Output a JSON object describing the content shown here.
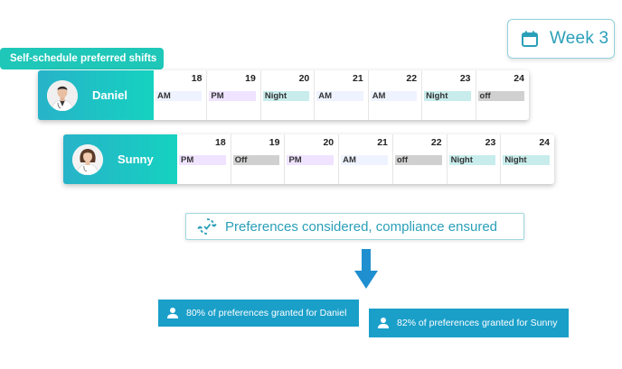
{
  "week": {
    "label": "Week 3",
    "icon": "calendar-icon"
  },
  "tag": {
    "label": "Self-schedule preferred shifts"
  },
  "colors": {
    "teal": "#1ec7b8",
    "blue": "#1a9fc9",
    "accent_text": "#2a9fb8"
  },
  "schedules": [
    {
      "name": "Daniel",
      "days": [
        {
          "num": "18",
          "shift": "AM",
          "type": "am"
        },
        {
          "num": "19",
          "shift": "PM",
          "type": "pm"
        },
        {
          "num": "20",
          "shift": "Night",
          "type": "night"
        },
        {
          "num": "21",
          "shift": "AM",
          "type": "am"
        },
        {
          "num": "22",
          "shift": "AM",
          "type": "am"
        },
        {
          "num": "23",
          "shift": "Night",
          "type": "night"
        },
        {
          "num": "24",
          "shift": "off",
          "type": "off"
        }
      ]
    },
    {
      "name": "Sunny",
      "days": [
        {
          "num": "18",
          "shift": "PM",
          "type": "pm"
        },
        {
          "num": "19",
          "shift": "Off",
          "type": "off"
        },
        {
          "num": "20",
          "shift": "PM",
          "type": "pm"
        },
        {
          "num": "21",
          "shift": "AM",
          "type": "am"
        },
        {
          "num": "22",
          "shift": "off",
          "type": "off"
        },
        {
          "num": "23",
          "shift": "Night",
          "type": "night"
        },
        {
          "num": "24",
          "shift": "Night",
          "type": "night"
        }
      ]
    }
  ],
  "banner": {
    "text": "Preferences considered, compliance ensured",
    "icon": "sync-icon"
  },
  "results": [
    {
      "text": "80% of preferences granted for Daniel",
      "icon": "user-icon"
    },
    {
      "text": "82% of preferences granted for Sunny",
      "icon": "user-icon"
    }
  ]
}
